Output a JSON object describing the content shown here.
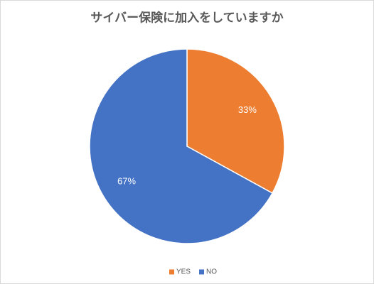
{
  "chart_data": {
    "type": "pie",
    "title": "サイバー保険に加入をしていますか",
    "categories": [
      "YES",
      "NO"
    ],
    "values": [
      33,
      67
    ],
    "value_labels": [
      "33%",
      "67%"
    ],
    "colors": [
      "#ed7d31",
      "#4472c4"
    ],
    "legend": "bottom"
  }
}
